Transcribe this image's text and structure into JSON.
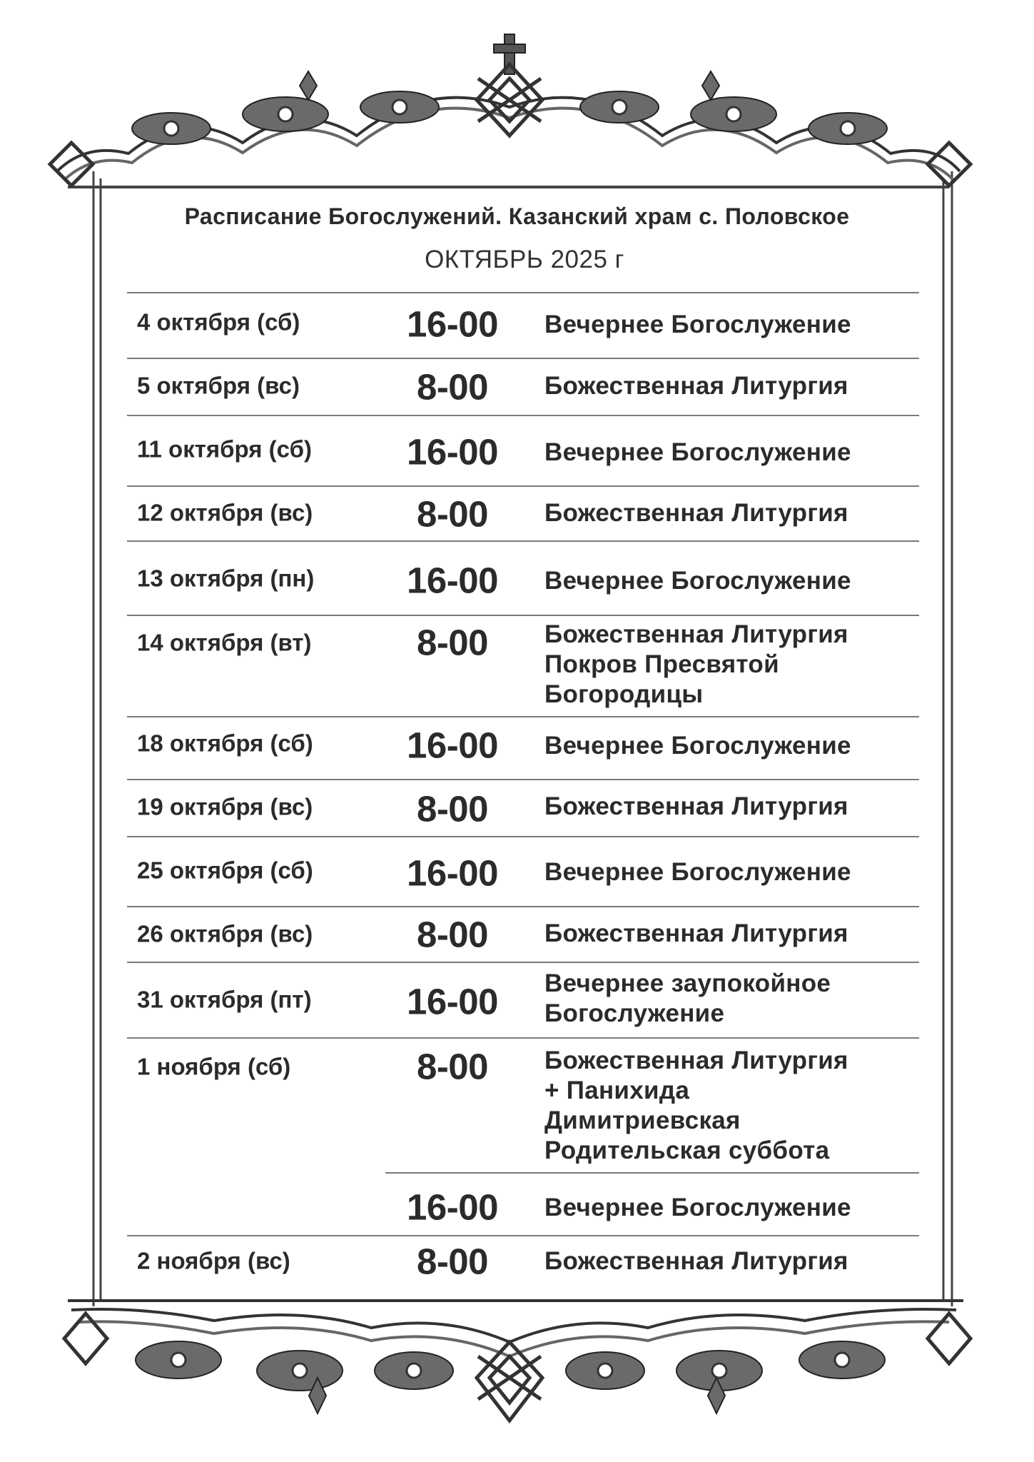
{
  "header": {
    "title": "Расписание Богослужений. Казанский храм с. Половское",
    "subtitle": "ОКТЯБРЬ  2025 г"
  },
  "schedule": [
    {
      "date": "4 октября (сб)",
      "time": "16-00",
      "service": [
        "Вечернее Богослужение"
      ]
    },
    {
      "date": "5 октября (вс)",
      "time": "8-00",
      "service": [
        "Божественная Литургия"
      ]
    },
    {
      "date": "11 октября (сб)",
      "time": "16-00",
      "service": [
        "Вечернее Богослужение"
      ]
    },
    {
      "date": "12 октября (вс)",
      "time": "8-00",
      "service": [
        "Божественная Литургия"
      ]
    },
    {
      "date": "13 октября (пн)",
      "time": "16-00",
      "service": [
        "Вечернее Богослужение"
      ]
    },
    {
      "date": "14 октября (вт)",
      "time": "8-00",
      "service": [
        "Божественная Литургия",
        "Покров Пресвятой",
        "Богородицы"
      ]
    },
    {
      "date": "18 октября (сб)",
      "time": "16-00",
      "service": [
        "Вечернее Богослужение"
      ]
    },
    {
      "date": "19 октября (вс)",
      "time": "8-00",
      "service": [
        "Божественная Литургия"
      ]
    },
    {
      "date": "25 октября (сб)",
      "time": "16-00",
      "service": [
        "Вечернее Богослужение"
      ]
    },
    {
      "date": "26 октября (вс)",
      "time": "8-00",
      "service": [
        "Божественная Литургия"
      ]
    },
    {
      "date": "31 октября (пт)",
      "time": "16-00",
      "service": [
        "Вечернее заупокойное",
        "Богослужение"
      ]
    },
    {
      "date": "1 ноября (сб)",
      "time": "8-00",
      "service": [
        "Божественная Литургия",
        "+ Панихида",
        "Димитриевская",
        "Родительская суббота"
      ]
    },
    {
      "date": "",
      "time": "16-00",
      "service": [
        "Вечернее Богослужение"
      ]
    },
    {
      "date": "2 ноября (вс)",
      "time": "8-00",
      "service": [
        "Божественная Литургия"
      ]
    }
  ]
}
